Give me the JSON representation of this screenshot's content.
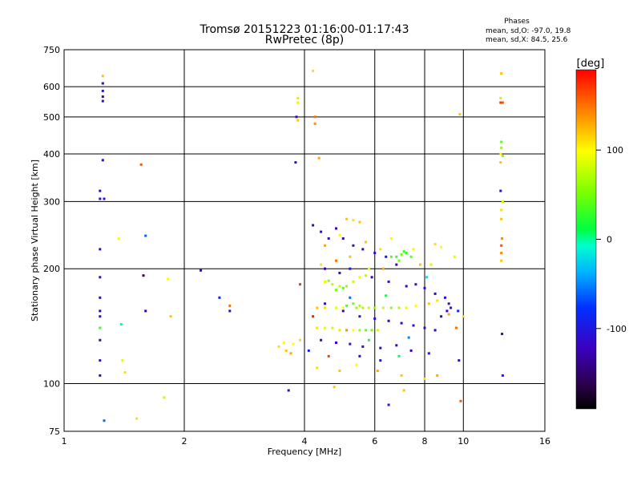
{
  "chart_data": {
    "type": "scatter",
    "title": "Tromsø 20151223 01:16:00-01:17:43",
    "subtitle": "RwPretec (8p)",
    "xlabel": "Frequency [MHz]",
    "ylabel": "Stationary phase Virtual Height [km]",
    "x_scale": "log",
    "y_scale": "log",
    "xlim": [
      1,
      16
    ],
    "ylim": [
      75,
      750
    ],
    "x_ticks": [
      1,
      2,
      4,
      6,
      8,
      10,
      16
    ],
    "y_ticks": [
      75,
      100,
      200,
      300,
      400,
      500,
      600,
      750
    ],
    "grid": true,
    "color_variable": "phase",
    "stats": {
      "heading": "Phases",
      "line1": "mean, sd,O:  -97.0, 19.8",
      "line2": "mean, sd,X:  84.5, 25.6"
    },
    "colorbar": {
      "label": "[deg]",
      "ticks": [
        100,
        0,
        -100
      ],
      "range": [
        -190,
        190
      ],
      "colormap": "rainbow"
    },
    "series": [
      {
        "points": [
          [
            1.25,
            612,
            -110
          ],
          [
            1.25,
            585,
            -100
          ],
          [
            1.25,
            565,
            -120
          ],
          [
            1.25,
            550,
            -110
          ],
          [
            1.25,
            385,
            -110
          ],
          [
            1.23,
            320,
            -110
          ],
          [
            1.23,
            305,
            -110
          ],
          [
            1.26,
            305,
            -100
          ],
          [
            1.23,
            225,
            -110
          ],
          [
            1.23,
            190,
            -110
          ],
          [
            1.23,
            168,
            -120
          ],
          [
            1.23,
            155,
            -130
          ],
          [
            1.23,
            150,
            -110
          ],
          [
            1.23,
            140,
            30
          ],
          [
            1.23,
            130,
            -110
          ],
          [
            1.23,
            115,
            -110
          ],
          [
            1.23,
            105,
            -110
          ],
          [
            1.26,
            80,
            -60
          ],
          [
            1.25,
            640,
            120
          ],
          [
            1.37,
            240,
            100
          ],
          [
            1.39,
            143,
            0
          ],
          [
            1.4,
            115,
            90
          ],
          [
            1.42,
            107,
            110
          ],
          [
            1.56,
            375,
            160
          ],
          [
            1.6,
            244,
            -60
          ],
          [
            1.58,
            192,
            -150
          ],
          [
            1.6,
            155,
            -130
          ],
          [
            1.52,
            81,
            110
          ],
          [
            1.85,
            150,
            120
          ],
          [
            1.78,
            92,
            80
          ],
          [
            1.82,
            188,
            100
          ],
          [
            12.45,
            650,
            120
          ],
          [
            12.4,
            560,
            110
          ],
          [
            12.4,
            545,
            170
          ],
          [
            12.55,
            545,
            160
          ],
          [
            12.45,
            430,
            40
          ],
          [
            12.45,
            415,
            60
          ],
          [
            12.4,
            400,
            100
          ],
          [
            12.4,
            380,
            120
          ],
          [
            12.55,
            395,
            60
          ],
          [
            12.4,
            320,
            -110
          ],
          [
            12.55,
            300,
            80
          ],
          [
            12.45,
            285,
            110
          ],
          [
            12.45,
            270,
            120
          ],
          [
            12.5,
            240,
            140
          ],
          [
            12.45,
            230,
            160
          ],
          [
            12.45,
            220,
            140
          ],
          [
            12.45,
            210,
            120
          ],
          [
            12.5,
            135,
            -110
          ],
          [
            12.55,
            105,
            -100
          ],
          [
            3.85,
            560,
            110
          ],
          [
            3.85,
            545,
            90
          ],
          [
            3.82,
            500,
            -110
          ],
          [
            3.85,
            490,
            120
          ],
          [
            3.8,
            380,
            -110
          ],
          [
            4.25,
            500,
            150
          ],
          [
            4.25,
            480,
            140
          ],
          [
            4.2,
            660,
            110
          ],
          [
            4.35,
            390,
            130
          ],
          [
            3.65,
            96,
            -110
          ],
          [
            4.75,
            98,
            120
          ],
          [
            6.5,
            88,
            -100
          ],
          [
            7.1,
            96,
            120
          ],
          [
            9.85,
            90,
            160
          ],
          [
            9.8,
            508,
            120
          ],
          [
            9.75,
            115,
            -110
          ],
          [
            2.2,
            198,
            -120
          ],
          [
            2.45,
            168,
            -90
          ],
          [
            2.6,
            155,
            -110
          ],
          [
            2.6,
            160,
            150
          ],
          [
            5.4,
            158,
            60
          ],
          [
            5.6,
            158,
            70
          ],
          [
            5.8,
            158,
            80
          ],
          [
            6.0,
            158,
            60
          ],
          [
            6.3,
            158,
            80
          ],
          [
            6.6,
            158,
            60
          ],
          [
            6.9,
            158,
            70
          ],
          [
            7.2,
            158,
            90
          ],
          [
            5.0,
            158,
            100
          ],
          [
            4.8,
            158,
            90
          ],
          [
            4.5,
            158,
            110
          ],
          [
            4.3,
            158,
            120
          ],
          [
            5.1,
            160,
            40
          ],
          [
            5.3,
            162,
            50
          ],
          [
            5.5,
            160,
            70
          ],
          [
            4.3,
            140,
            110
          ],
          [
            4.5,
            140,
            90
          ],
          [
            4.7,
            140,
            80
          ],
          [
            4.9,
            138,
            110
          ],
          [
            5.1,
            138,
            140
          ],
          [
            5.3,
            138,
            100
          ],
          [
            5.5,
            138,
            60
          ],
          [
            5.7,
            138,
            40
          ],
          [
            5.9,
            138,
            50
          ],
          [
            6.1,
            138,
            80
          ],
          [
            4.5,
            185,
            90
          ],
          [
            4.7,
            182,
            70
          ],
          [
            4.9,
            180,
            80
          ],
          [
            5.1,
            180,
            60
          ],
          [
            5.3,
            185,
            80
          ],
          [
            5.5,
            190,
            90
          ],
          [
            5.7,
            192,
            70
          ],
          [
            5.0,
            178,
            40
          ],
          [
            4.8,
            176,
            50
          ],
          [
            4.6,
            186,
            60
          ],
          [
            6.6,
            215,
            40
          ],
          [
            6.8,
            215,
            30
          ],
          [
            7.0,
            218,
            50
          ],
          [
            7.2,
            220,
            30
          ],
          [
            7.4,
            215,
            40
          ],
          [
            6.9,
            210,
            50
          ],
          [
            7.1,
            222,
            30
          ],
          [
            3.45,
            125,
            110
          ],
          [
            3.6,
            122,
            120
          ],
          [
            3.75,
            127,
            100
          ],
          [
            3.9,
            130,
            110
          ],
          [
            3.55,
            128,
            100
          ],
          [
            3.7,
            120,
            130
          ],
          [
            5.1,
            270,
            120
          ],
          [
            5.3,
            268,
            110
          ],
          [
            5.5,
            265,
            120
          ],
          [
            4.9,
            245,
            100
          ],
          [
            4.5,
            230,
            130
          ],
          [
            5.7,
            235,
            120
          ],
          [
            6.2,
            225,
            110
          ],
          [
            6.6,
            240,
            100
          ],
          [
            7.5,
            225,
            90
          ],
          [
            4.4,
            205,
            110
          ],
          [
            4.8,
            210,
            150
          ],
          [
            5.2,
            215,
            120
          ],
          [
            5.8,
            200,
            90
          ],
          [
            6.3,
            200,
            130
          ],
          [
            8.5,
            232,
            110
          ],
          [
            8.8,
            228,
            100
          ],
          [
            7.8,
            205,
            120
          ],
          [
            8.3,
            205,
            80
          ],
          [
            9.5,
            215,
            90
          ],
          [
            7.6,
            160,
            100
          ],
          [
            8.2,
            162,
            120
          ],
          [
            8.6,
            165,
            110
          ],
          [
            9.2,
            152,
            130
          ],
          [
            10.0,
            150,
            110
          ],
          [
            4.3,
            110,
            110
          ],
          [
            4.9,
            108,
            120
          ],
          [
            5.4,
            112,
            100
          ],
          [
            6.1,
            108,
            130
          ],
          [
            7.0,
            105,
            120
          ],
          [
            8.0,
            103,
            110
          ],
          [
            8.6,
            105,
            130
          ],
          [
            4.2,
            260,
            -120
          ],
          [
            4.4,
            250,
            -110
          ],
          [
            4.6,
            240,
            -100
          ],
          [
            4.8,
            255,
            -120
          ],
          [
            5.0,
            240,
            -110
          ],
          [
            5.3,
            230,
            -100
          ],
          [
            5.6,
            225,
            -120
          ],
          [
            6.0,
            220,
            -110
          ],
          [
            6.4,
            215,
            -100
          ],
          [
            6.8,
            205,
            -120
          ],
          [
            4.5,
            200,
            -130
          ],
          [
            4.9,
            195,
            -110
          ],
          [
            5.2,
            200,
            -100
          ],
          [
            5.9,
            190,
            -120
          ],
          [
            6.5,
            185,
            -110
          ],
          [
            7.2,
            180,
            -120
          ],
          [
            7.6,
            182,
            -100
          ],
          [
            8.0,
            178,
            -110
          ],
          [
            8.5,
            172,
            -120
          ],
          [
            9.0,
            168,
            -110
          ],
          [
            9.2,
            162,
            -100
          ],
          [
            9.3,
            158,
            -110
          ],
          [
            9.1,
            155,
            -120
          ],
          [
            8.8,
            150,
            -110
          ],
          [
            4.5,
            162,
            -110
          ],
          [
            5.0,
            155,
            -120
          ],
          [
            5.5,
            150,
            -100
          ],
          [
            6.0,
            148,
            -110
          ],
          [
            6.5,
            146,
            -120
          ],
          [
            7.0,
            144,
            -110
          ],
          [
            7.5,
            142,
            -100
          ],
          [
            8.0,
            140,
            -110
          ],
          [
            8.5,
            138,
            -120
          ],
          [
            4.4,
            130,
            -110
          ],
          [
            4.8,
            128,
            -120
          ],
          [
            5.2,
            127,
            -100
          ],
          [
            5.6,
            125,
            -110
          ],
          [
            6.2,
            124,
            -120
          ],
          [
            6.8,
            126,
            -110
          ],
          [
            7.4,
            122,
            -130
          ],
          [
            8.2,
            120,
            -110
          ],
          [
            5.5,
            118,
            -110
          ],
          [
            6.2,
            115,
            -100
          ],
          [
            4.1,
            122,
            -90
          ],
          [
            4.6,
            118,
            170
          ],
          [
            6.9,
            118,
            10
          ],
          [
            5.8,
            130,
            20
          ],
          [
            7.3,
            132,
            -50
          ],
          [
            6.4,
            170,
            10
          ],
          [
            5.2,
            168,
            -60
          ],
          [
            4.2,
            150,
            180
          ],
          [
            3.9,
            182,
            170
          ],
          [
            8.1,
            190,
            -20
          ],
          [
            9.6,
            140,
            150
          ],
          [
            9.7,
            155,
            -90
          ]
        ]
      }
    ]
  }
}
